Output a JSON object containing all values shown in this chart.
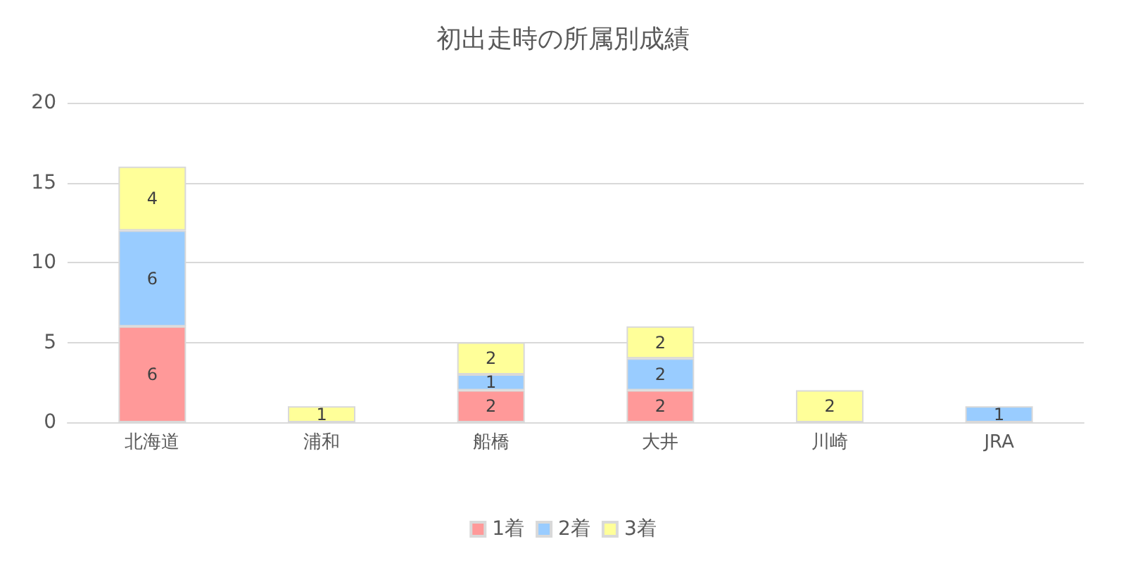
{
  "chart_data": {
    "type": "bar",
    "title": "初出走時の所属別成績",
    "categories": [
      "北海道",
      "浦和",
      "船橋",
      "大井",
      "川崎",
      "JRA"
    ],
    "series": [
      {
        "name": "1着",
        "color": "#ff9999",
        "values": [
          6,
          null,
          2,
          2,
          null,
          null
        ]
      },
      {
        "name": "2着",
        "color": "#99ccff",
        "values": [
          6,
          null,
          1,
          2,
          null,
          1
        ]
      },
      {
        "name": "3着",
        "color": "#ffff99",
        "values": [
          4,
          1,
          2,
          2,
          2,
          null
        ]
      }
    ],
    "stacked": true,
    "data_labels": true,
    "ylim": [
      0,
      20
    ],
    "yticks": [
      0,
      5,
      10,
      15,
      20
    ],
    "grid": "y",
    "legend": "bottom"
  }
}
